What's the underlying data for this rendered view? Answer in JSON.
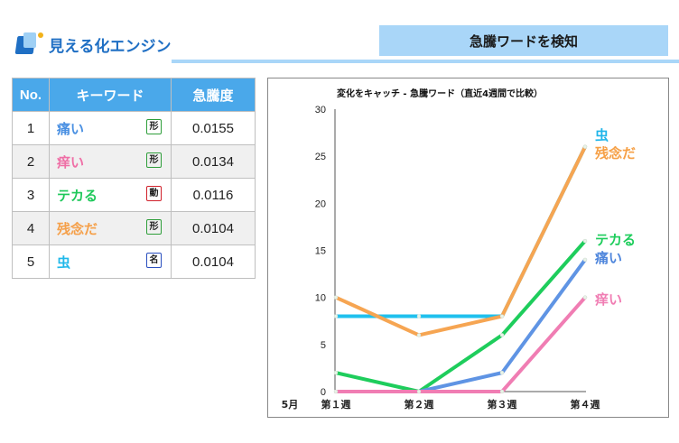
{
  "brand": {
    "name": "見える化エンジン"
  },
  "header": {
    "title": "急騰ワードを検知"
  },
  "table": {
    "headers": [
      "No.",
      "キーワード",
      "急騰度"
    ],
    "rows": [
      {
        "no": "1",
        "word": "痛い",
        "tag": "形",
        "value": "0.0155",
        "color": "#4a90e2",
        "tag_color": "#2e9e3a"
      },
      {
        "no": "2",
        "word": "痒い",
        "tag": "形",
        "value": "0.0134",
        "color": "#ef6fa6",
        "tag_color": "#2e9e3a"
      },
      {
        "no": "3",
        "word": "テカる",
        "tag": "動",
        "value": "0.0116",
        "color": "#1ec85a",
        "tag_color": "#d0202a"
      },
      {
        "no": "4",
        "word": "残念だ",
        "tag": "形",
        "value": "0.0104",
        "color": "#f5a04a",
        "tag_color": "#2e9e3a"
      },
      {
        "no": "5",
        "word": "虫",
        "tag": "名",
        "value": "0.0104",
        "color": "#20b8ea",
        "tag_color": "#2a4fbf"
      }
    ]
  },
  "chart_data": {
    "type": "line",
    "title": "変化をキャッチ - 急騰ワード（直近4週間で比較）",
    "month_label": "5月",
    "categories": [
      "第１週",
      "第２週",
      "第３週",
      "第４週"
    ],
    "ylim": [
      0,
      30
    ],
    "yticks": [
      0,
      5,
      10,
      15,
      20,
      25,
      30
    ],
    "series": [
      {
        "name": "虫",
        "values": [
          8,
          8,
          8,
          26
        ],
        "color": "#1fc0ee"
      },
      {
        "name": "残念だ",
        "values": [
          10,
          6,
          8,
          26
        ],
        "color": "#f6a552"
      },
      {
        "name": "テカる",
        "values": [
          2,
          0,
          6,
          16
        ],
        "color": "#1ecd5c"
      },
      {
        "name": "痛い",
        "values": [
          0,
          0,
          2,
          14
        ],
        "color": "#5f94e4"
      },
      {
        "name": "痒い",
        "values": [
          0,
          0,
          0,
          10
        ],
        "color": "#f07db3"
      }
    ],
    "end_labels": [
      {
        "text": "虫",
        "color": "#1fb5ea"
      },
      {
        "text": "残念だ",
        "color": "#f6a046"
      },
      {
        "text": "テカる",
        "color": "#1ecd5c"
      },
      {
        "text": "痛い",
        "color": "#4f86dc"
      },
      {
        "text": "痒い",
        "color": "#f07db3"
      }
    ]
  }
}
